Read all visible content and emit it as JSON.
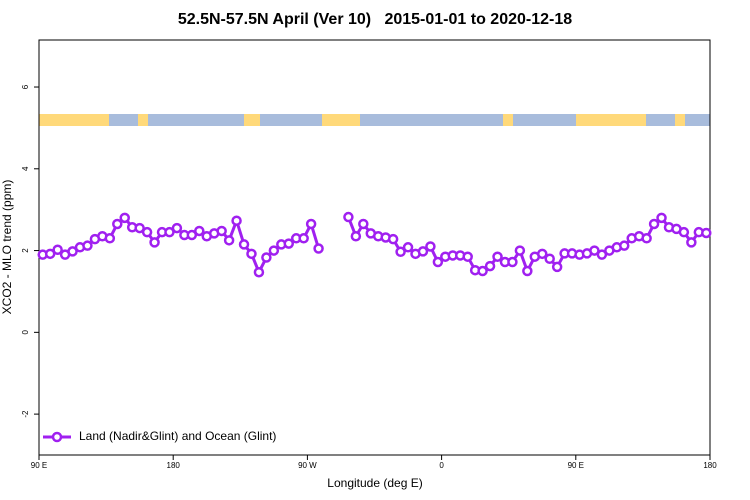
{
  "chart_data": {
    "type": "line",
    "title": "52.5N-57.5N April (Ver 10)   2015-01-01 to 2020-12-18",
    "x_label": "Longitude (deg E)",
    "y_label": "XCO2 - MLO trend (ppm)",
    "xlim": [
      90,
      540
    ],
    "ylim": [
      -3,
      7.15
    ],
    "xticks": [
      {
        "value": 90,
        "label": "90 E"
      },
      180,
      {
        "value": 270,
        "label": "90 W"
      },
      {
        "value": 360,
        "label": "0"
      },
      {
        "value": 450,
        "label": "90 E"
      },
      {
        "value": 540,
        "label": "180"
      }
    ],
    "yticks": [
      -2,
      0,
      2,
      4,
      6
    ],
    "legend_position": "bottom-left",
    "x": [
      92.5,
      97.5,
      102.5,
      107.5,
      112.5,
      117.5,
      122.5,
      127.5,
      132.5,
      137.5,
      142.5,
      147.5,
      152.5,
      157.5,
      162.5,
      167.5,
      172.5,
      177.5,
      182.5,
      187.5,
      192.5,
      197.5,
      202.5,
      207.5,
      212.5,
      217.5,
      222.5,
      227.5,
      232.5,
      237.5,
      242.5,
      247.5,
      252.5,
      257.5,
      262.5,
      267.5,
      272.5,
      277.5,
      282.5,
      287.5,
      292.5,
      297.5,
      302.5,
      307.5,
      312.5,
      317.5,
      322.5,
      327.5,
      332.5,
      337.5,
      342.5,
      347.5,
      352.5,
      357.5,
      362.5,
      367.5,
      372.5,
      377.5,
      382.5,
      387.5,
      392.5,
      397.5,
      402.5,
      407.5,
      412.5,
      417.5,
      422.5,
      427.5,
      432.5,
      437.5,
      442.5,
      447.5,
      452.5,
      457.5,
      462.5,
      467.5,
      472.5,
      477.5,
      482.5,
      487.5,
      492.5,
      497.5,
      502.5,
      507.5,
      512.5,
      517.5,
      522.5,
      527.5,
      532.5,
      537.5
    ],
    "series": [
      {
        "name": "Land (Nadir&Glint) and Ocean (Glint)",
        "color": "#a020f0",
        "values": [
          1.9,
          1.92,
          2.02,
          1.9,
          1.98,
          2.08,
          2.12,
          2.28,
          2.35,
          2.3,
          2.65,
          2.8,
          2.57,
          2.55,
          2.45,
          2.2,
          2.45,
          2.45,
          2.55,
          2.38,
          2.38,
          2.48,
          2.35,
          2.42,
          2.48,
          2.25,
          2.73,
          2.15,
          1.92,
          1.47,
          1.83,
          2.0,
          2.15,
          2.17,
          2.3,
          2.3,
          2.65,
          2.05,
          null,
          null,
          null,
          2.82,
          2.35,
          2.65,
          2.42,
          2.35,
          2.32,
          2.28,
          1.97,
          2.08,
          1.92,
          1.98,
          2.1,
          1.72,
          1.85,
          1.88,
          1.88,
          1.85,
          1.52,
          1.5,
          1.62,
          1.85,
          1.72,
          1.72,
          2.0,
          1.5,
          1.85,
          1.92,
          1.8,
          1.6,
          1.93,
          1.93,
          1.9,
          1.93,
          2.0,
          1.9,
          2.0,
          2.08,
          2.12,
          2.3,
          2.35,
          2.3,
          2.65,
          2.8,
          2.57,
          2.53,
          2.45,
          2.2,
          2.45,
          2.43
        ]
      }
    ]
  }
}
